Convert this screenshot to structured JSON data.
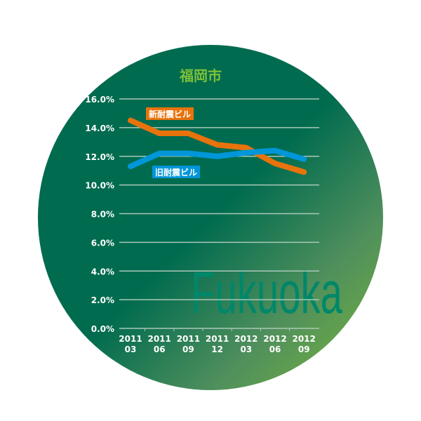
{
  "chart_data": {
    "type": "line",
    "title": "福岡市",
    "watermark": "Fukuoka",
    "categories": [
      [
        "2011",
        "03"
      ],
      [
        "2011",
        "06"
      ],
      [
        "2011",
        "09"
      ],
      [
        "2011",
        "12"
      ],
      [
        "2012",
        "03"
      ],
      [
        "2012",
        "06"
      ],
      [
        "2012",
        "09"
      ]
    ],
    "y_ticks": [
      "0.0%",
      "2.0%",
      "4.0%",
      "6.0%",
      "8.0%",
      "10.0%",
      "12.0%",
      "14.0%",
      "16.0%"
    ],
    "ylim": [
      0,
      16
    ],
    "grid": true,
    "series": [
      {
        "name": "新耐震ビル",
        "color": "#e8730c",
        "values": [
          14.5,
          13.6,
          13.6,
          12.8,
          12.6,
          11.5,
          10.9
        ]
      },
      {
        "name": "旧耐震ビル",
        "color": "#0096d8",
        "values": [
          11.3,
          12.2,
          12.2,
          12.0,
          12.25,
          12.4,
          11.8
        ]
      }
    ],
    "colors": {
      "title": "#7cc03a",
      "watermark": "#00876a",
      "background_dark": "#006b4f",
      "background_light": "#7bb83a"
    }
  }
}
